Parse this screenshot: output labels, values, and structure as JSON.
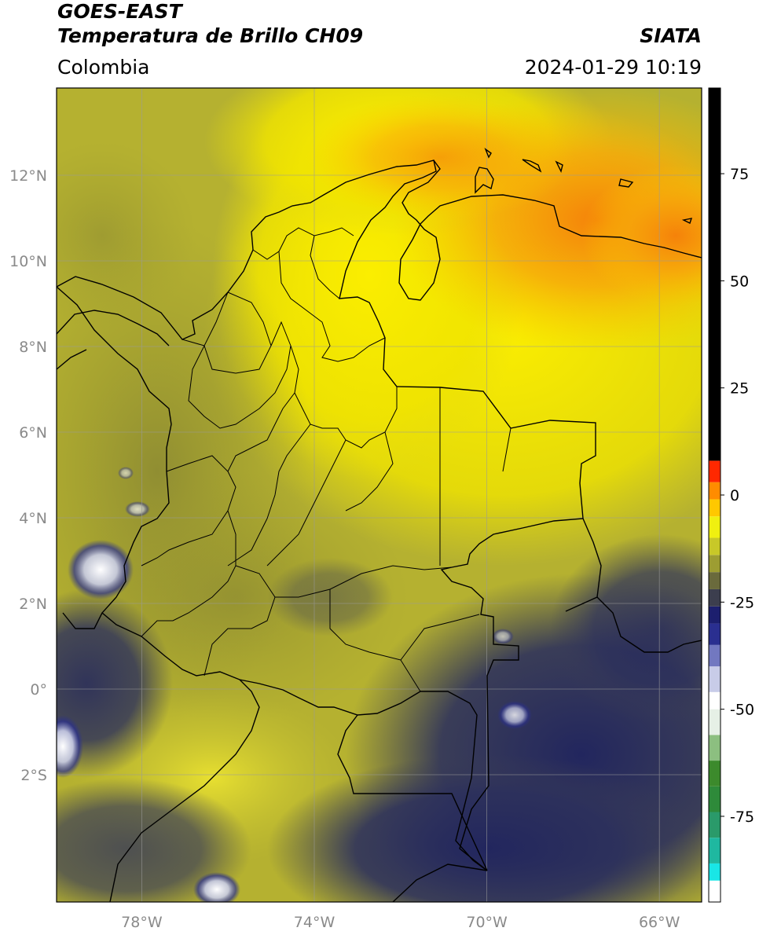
{
  "header": {
    "title_line1": "GOES-EAST",
    "title_line2": "Temperatura de Brillo CH09",
    "region": "Colombia",
    "org": "SIATA",
    "datetime": "2024-01-29 10:19"
  },
  "map": {
    "lon_range": [
      -80,
      -65
    ],
    "lat_range": [
      -5,
      14
    ],
    "lon_ticks": [
      {
        "value": -78,
        "label": "78°W"
      },
      {
        "value": -74,
        "label": "74°W"
      },
      {
        "value": -70,
        "label": "70°W"
      },
      {
        "value": -66,
        "label": "66°W"
      }
    ],
    "lat_ticks": [
      {
        "value": 12,
        "label": "12°N"
      },
      {
        "value": 10,
        "label": "10°N"
      },
      {
        "value": 8,
        "label": "8°N"
      },
      {
        "value": 6,
        "label": "6°N"
      },
      {
        "value": 4,
        "label": "4°N"
      },
      {
        "value": 2,
        "label": "2°N"
      },
      {
        "value": 0,
        "label": "0°"
      },
      {
        "value": -2,
        "label": "2°S"
      }
    ],
    "gridlines": true
  },
  "colorbar": {
    "ticks": [
      {
        "value": 75,
        "label": "75"
      },
      {
        "value": 50,
        "label": "50"
      },
      {
        "value": 25,
        "label": "25"
      },
      {
        "value": 0,
        "label": "0"
      },
      {
        "value": -25,
        "label": "-25"
      },
      {
        "value": -50,
        "label": "-50"
      },
      {
        "value": -75,
        "label": "-75"
      }
    ],
    "range": [
      -95,
      95
    ],
    "segments": [
      {
        "from": -95,
        "to": -90,
        "color": "#ffffff"
      },
      {
        "from": -90,
        "to": -86,
        "color": "#19e6e6"
      },
      {
        "from": -86,
        "to": -80,
        "color": "#1fb8a0"
      },
      {
        "from": -80,
        "to": -74,
        "color": "#2a9a6a"
      },
      {
        "from": -74,
        "to": -68,
        "color": "#2e8a3a"
      },
      {
        "from": -68,
        "to": -62,
        "color": "#3c8a2c"
      },
      {
        "from": -62,
        "to": -56,
        "color": "#8cbf80"
      },
      {
        "from": -56,
        "to": -50,
        "color": "#e6f0e6"
      },
      {
        "from": -50,
        "to": -46,
        "color": "#ffffff"
      },
      {
        "from": -46,
        "to": -40,
        "color": "#c8cce8"
      },
      {
        "from": -40,
        "to": -35,
        "color": "#7278c0"
      },
      {
        "from": -35,
        "to": -30,
        "color": "#2a2f90"
      },
      {
        "from": -30,
        "to": -26,
        "color": "#1c1f6e"
      },
      {
        "from": -26,
        "to": -22,
        "color": "#3c3e4e"
      },
      {
        "from": -22,
        "to": -18,
        "color": "#6a6a3c"
      },
      {
        "from": -18,
        "to": -14,
        "color": "#9d9d32"
      },
      {
        "from": -14,
        "to": -10,
        "color": "#c8c828"
      },
      {
        "from": -10,
        "to": -5,
        "color": "#f0f010"
      },
      {
        "from": -5,
        "to": -1,
        "color": "#ffc800"
      },
      {
        "from": -1,
        "to": 3,
        "color": "#ff8c00"
      },
      {
        "from": 3,
        "to": 8,
        "color": "#ff2800"
      },
      {
        "from": 8,
        "to": 95,
        "color": "#000000"
      }
    ]
  },
  "colors": {
    "warm_orange": "#f59a0a",
    "warm_yellow": "#f5e600",
    "olive": "#a8a42a",
    "dark_olive": "#7a7a3a",
    "cloud_navy": "#2a2e5c",
    "cloud_blue": "#24287a",
    "cloud_white": "#f0f0f5",
    "border": "#000000",
    "grid": "#9a9a9a"
  }
}
